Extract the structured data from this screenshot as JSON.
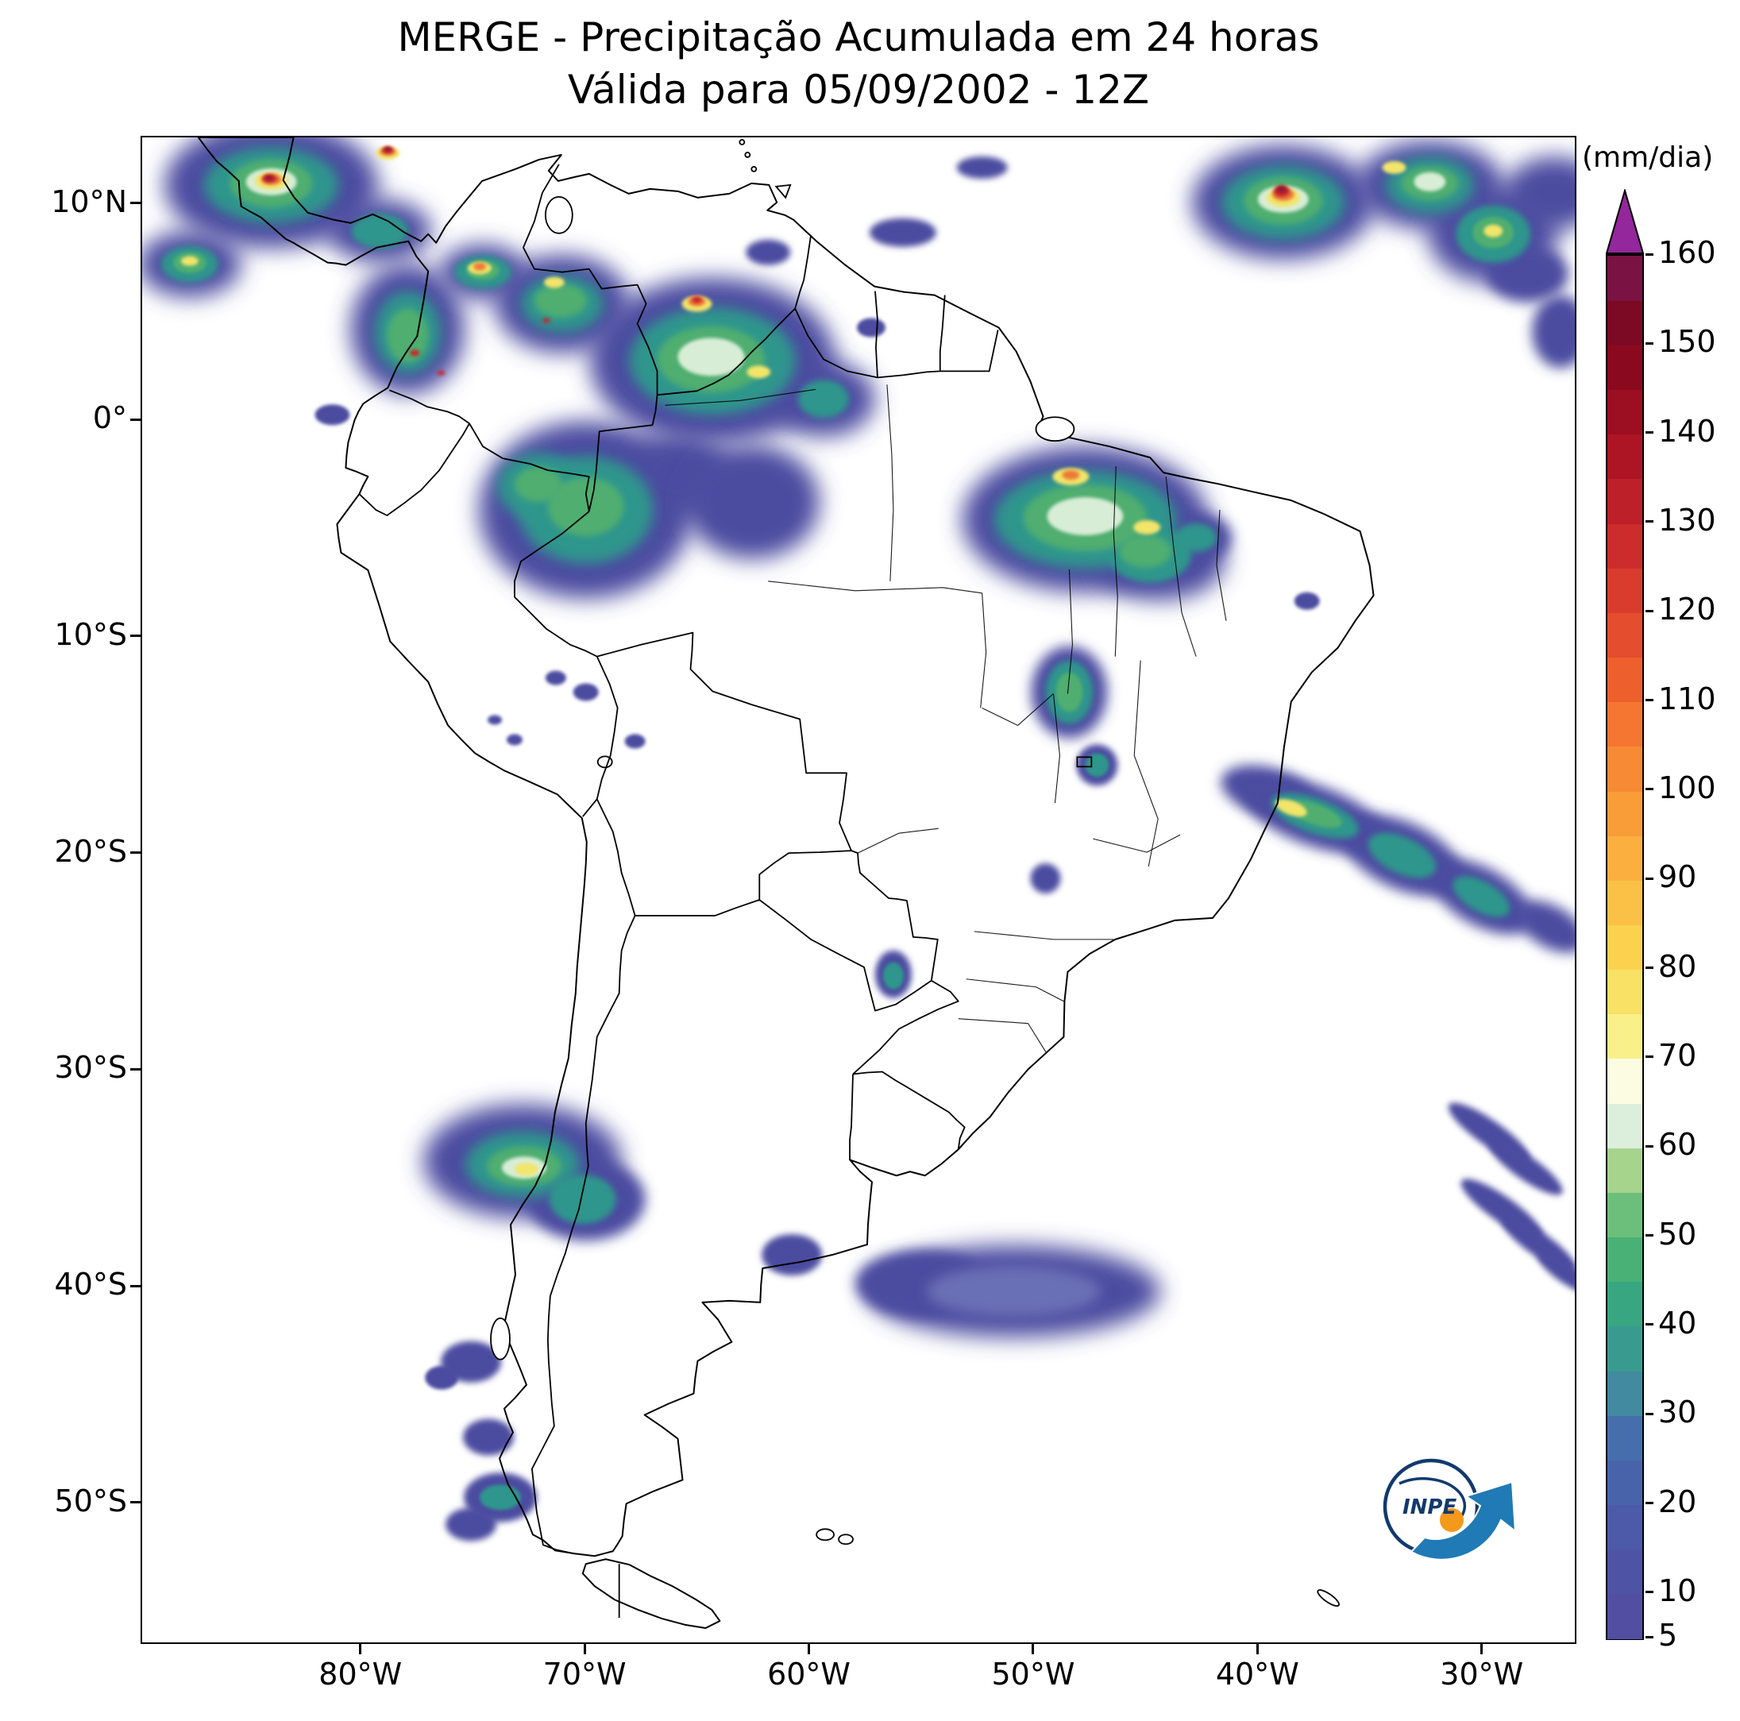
{
  "title": {
    "line1": "MERGE - Precipitação Acumulada em 24 horas",
    "line2": "Válida para 05/09/2002 - 12Z"
  },
  "axes": {
    "lat_ticks": [
      {
        "label": "10°N",
        "lat": 10
      },
      {
        "label": "0°",
        "lat": 0
      },
      {
        "label": "10°S",
        "lat": -10
      },
      {
        "label": "20°S",
        "lat": -20
      },
      {
        "label": "30°S",
        "lat": -30
      },
      {
        "label": "40°S",
        "lat": -40
      },
      {
        "label": "50°S",
        "lat": -50
      }
    ],
    "lon_ticks": [
      {
        "label": "80°W",
        "lon": 80
      },
      {
        "label": "70°W",
        "lon": 70
      },
      {
        "label": "60°W",
        "lon": 60
      },
      {
        "label": "50°W",
        "lon": 50
      },
      {
        "label": "40°W",
        "lon": 40
      },
      {
        "label": "30°W",
        "lon": 30
      }
    ]
  },
  "colorbar": {
    "unit": "(mm/dia)",
    "min": 5,
    "max": 160,
    "tick_values": [
      5,
      10,
      20,
      30,
      40,
      50,
      60,
      70,
      80,
      90,
      100,
      110,
      120,
      130,
      140,
      150,
      160
    ],
    "segment_step": 5,
    "segment_colors_bottom_to_top": [
      "#524fa3",
      "#4f53a6",
      "#4c5aa9",
      "#4963ab",
      "#466ead",
      "#418a9f",
      "#399b90",
      "#38a681",
      "#4ab176",
      "#6cbf7a",
      "#a6d48d",
      "#dcefdc",
      "#fcfce3",
      "#faf089",
      "#f9e165",
      "#fad24e",
      "#fbc147",
      "#fbaf3f",
      "#f99d39",
      "#f78a34",
      "#f47630",
      "#ee5f2e",
      "#e44d2d",
      "#d93b2c",
      "#cc2c2b",
      "#bd2028",
      "#ad1525",
      "#9c0e22",
      "#8b091f",
      "#7c0a24",
      "#7a1244"
    ],
    "over_color": "#93279b"
  },
  "logo": {
    "text": "INPE"
  },
  "palette": {
    "b": "#4c4ba0",
    "lb": "#6b6fb5",
    "t": "#2f968c",
    "g": "#4fae6f",
    "p": "#d8edd5",
    "y": "#f2e56a",
    "o": "#ec7a36",
    "r": "#c5252d",
    "d": "#8c1430"
  },
  "precipitation_blobs": [
    [
      163,
      60,
      135,
      80,
      "b",
      "lg",
      0
    ],
    [
      60,
      160,
      65,
      42,
      "b",
      "lg",
      0
    ],
    [
      300,
      118,
      65,
      40,
      "b",
      "lg",
      0
    ],
    [
      335,
      242,
      72,
      82,
      "b",
      "lg",
      0
    ],
    [
      430,
      170,
      55,
      35,
      "b",
      "lg",
      0
    ],
    [
      530,
      210,
      85,
      62,
      "b",
      "lg",
      0
    ],
    [
      790,
      145,
      28,
      16,
      "b",
      "sm",
      0
    ],
    [
      920,
      240,
      18,
      12,
      "b",
      "xs",
      0
    ],
    [
      720,
      282,
      155,
      105,
      "b",
      "lg",
      0
    ],
    [
      860,
      330,
      65,
      48,
      "b",
      "lg",
      0
    ],
    [
      560,
      470,
      135,
      112,
      "b",
      "lg",
      0
    ],
    [
      680,
      425,
      65,
      52,
      "b",
      "lg",
      0
    ],
    [
      770,
      460,
      85,
      72,
      "b",
      "lg",
      0
    ],
    [
      1060,
      38,
      32,
      14,
      "b",
      "sm",
      0
    ],
    [
      960,
      120,
      42,
      18,
      "b",
      "sm",
      0
    ],
    [
      1190,
      482,
      155,
      92,
      "b",
      "lg",
      0
    ],
    [
      1285,
      532,
      82,
      52,
      "b",
      "lg",
      0
    ],
    [
      1330,
      505,
      45,
      32,
      "b",
      "md",
      0
    ],
    [
      1470,
      585,
      16,
      11,
      "b",
      "xs",
      0
    ],
    [
      1170,
      700,
      48,
      58,
      "b",
      "md",
      0
    ],
    [
      1205,
      792,
      26,
      26,
      "b",
      "sm",
      0
    ],
    [
      1140,
      935,
      19,
      19,
      "b",
      "sm",
      0
    ],
    [
      948,
      1056,
      23,
      30,
      "b",
      "sm",
      0
    ],
    [
      1420,
      825,
      60,
      30,
      "b",
      "md",
      15
    ],
    [
      1480,
      856,
      95,
      38,
      "b",
      "md",
      20
    ],
    [
      1590,
      906,
      82,
      42,
      "b",
      "md",
      25
    ],
    [
      1690,
      958,
      72,
      36,
      "b",
      "md",
      30
    ],
    [
      1778,
      996,
      48,
      26,
      "b",
      "md",
      30
    ],
    [
      480,
      1292,
      125,
      72,
      "b",
      "lg",
      0
    ],
    [
      560,
      1340,
      75,
      52,
      "b",
      "md",
      0
    ],
    [
      820,
      1410,
      38,
      26,
      "b",
      "sm",
      0
    ],
    [
      1100,
      1456,
      185,
      58,
      "b",
      "lg",
      0
    ],
    [
      985,
      1446,
      85,
      42,
      "b",
      "md",
      0
    ],
    [
      415,
      1545,
      38,
      26,
      "b",
      "sm",
      0
    ],
    [
      437,
      1640,
      32,
      23,
      "b",
      "sm",
      0
    ],
    [
      452,
      1716,
      46,
      31,
      "b",
      "sm",
      0
    ],
    [
      415,
      1750,
      32,
      21,
      "b",
      "sm",
      0
    ],
    [
      378,
      1565,
      21,
      15,
      "b",
      "xs",
      0
    ],
    [
      1440,
      82,
      115,
      72,
      "b",
      "lg",
      0
    ],
    [
      1625,
      60,
      92,
      56,
      "b",
      "lg",
      0
    ],
    [
      1705,
      122,
      82,
      62,
      "b",
      "lg",
      0
    ],
    [
      1782,
      70,
      62,
      46,
      "b",
      "lg",
      0
    ],
    [
      1748,
      172,
      52,
      36,
      "b",
      "md",
      0
    ],
    [
      1790,
      245,
      36,
      46,
      "b",
      "md",
      0
    ],
    [
      1700,
      1256,
      62,
      16,
      "b",
      "sm",
      35
    ],
    [
      1746,
      1300,
      56,
      15,
      "b",
      "sm",
      35
    ],
    [
      1716,
      1352,
      62,
      16,
      "b",
      "sm",
      35
    ],
    [
      1762,
      1396,
      56,
      15,
      "b",
      "sm",
      35
    ],
    [
      1796,
      1432,
      42,
      13,
      "b",
      "sm",
      35
    ],
    [
      240,
      350,
      22,
      13,
      "b",
      "xs",
      0
    ],
    [
      560,
      700,
      16,
      11,
      "b",
      "xs",
      0
    ],
    [
      522,
      682,
      13,
      9,
      "b",
      "xs",
      0
    ],
    [
      622,
      762,
      13,
      9,
      "b",
      "xs",
      0
    ],
    [
      470,
      760,
      10,
      7,
      "b",
      "xs",
      0
    ],
    [
      445,
      735,
      9,
      6,
      "b",
      "xs",
      0
    ],
    [
      1100,
      1456,
      110,
      32,
      "lb",
      "md",
      0
    ],
    [
      163,
      60,
      85,
      48,
      "t",
      "md",
      0
    ],
    [
      335,
      246,
      42,
      52,
      "t",
      "md",
      0
    ],
    [
      530,
      210,
      52,
      36,
      "t",
      "md",
      0
    ],
    [
      720,
      282,
      105,
      68,
      "t",
      "md",
      0
    ],
    [
      860,
      330,
      32,
      24,
      "t",
      "sm",
      0
    ],
    [
      560,
      470,
      85,
      68,
      "t",
      "md",
      0
    ],
    [
      500,
      440,
      52,
      42,
      "t",
      "md",
      0
    ],
    [
      1190,
      482,
      115,
      62,
      "t",
      "md",
      0
    ],
    [
      1272,
      526,
      52,
      36,
      "t",
      "sm",
      0
    ],
    [
      1330,
      505,
      26,
      18,
      "t",
      "sm",
      0
    ],
    [
      1170,
      700,
      30,
      40,
      "t",
      "sm",
      0
    ],
    [
      480,
      1296,
      72,
      42,
      "t",
      "md",
      0
    ],
    [
      556,
      1340,
      42,
      31,
      "t",
      "sm",
      0
    ],
    [
      1480,
      856,
      58,
      22,
      "t",
      "sm",
      20
    ],
    [
      1590,
      906,
      46,
      23,
      "t",
      "sm",
      25
    ],
    [
      1690,
      958,
      40,
      19,
      "t",
      "sm",
      30
    ],
    [
      1440,
      82,
      78,
      47,
      "t",
      "md",
      0
    ],
    [
      1625,
      60,
      56,
      36,
      "t",
      "md",
      0
    ],
    [
      1705,
      122,
      47,
      36,
      "t",
      "sm",
      0
    ],
    [
      452,
      1716,
      26,
      16,
      "t",
      "xs",
      0
    ],
    [
      1205,
      792,
      15,
      15,
      "t",
      "xs",
      0
    ],
    [
      948,
      1058,
      13,
      17,
      "t",
      "xs",
      0
    ],
    [
      60,
      160,
      36,
      23,
      "t",
      "sm",
      0
    ],
    [
      430,
      170,
      36,
      21,
      "t",
      "sm",
      0
    ],
    [
      300,
      118,
      36,
      22,
      "t",
      "sm",
      0
    ],
    [
      163,
      58,
      52,
      30,
      "g",
      "sm",
      0
    ],
    [
      335,
      250,
      26,
      34,
      "g",
      "sm",
      0
    ],
    [
      528,
      206,
      33,
      21,
      "g",
      "sm",
      0
    ],
    [
      718,
      280,
      68,
      42,
      "g",
      "sm",
      0
    ],
    [
      1190,
      480,
      78,
      42,
      "g",
      "sm",
      0
    ],
    [
      1266,
      522,
      33,
      21,
      "g",
      "sm",
      0
    ],
    [
      560,
      466,
      48,
      37,
      "g",
      "sm",
      0
    ],
    [
      500,
      438,
      30,
      22,
      "g",
      "sm",
      0
    ],
    [
      1170,
      700,
      17,
      25,
      "g",
      "xs",
      0
    ],
    [
      482,
      1298,
      47,
      25,
      "g",
      "sm",
      0
    ],
    [
      1480,
      854,
      36,
      13,
      "g",
      "xs",
      20
    ],
    [
      1440,
      80,
      50,
      30,
      "g",
      "sm",
      0
    ],
    [
      1625,
      58,
      36,
      21,
      "g",
      "sm",
      0
    ],
    [
      60,
      158,
      21,
      13,
      "g",
      "xs",
      0
    ],
    [
      430,
      168,
      21,
      12,
      "g",
      "xs",
      0
    ],
    [
      1705,
      120,
      26,
      20,
      "g",
      "xs",
      0
    ],
    [
      163,
      56,
      32,
      17,
      "p",
      "xs",
      0
    ],
    [
      718,
      277,
      42,
      24,
      "p",
      "xs",
      0
    ],
    [
      1190,
      478,
      48,
      24,
      "p",
      "xs",
      0
    ],
    [
      1440,
      78,
      32,
      17,
      "p",
      "xs",
      0
    ],
    [
      482,
      1300,
      28,
      14,
      "p",
      "xs",
      0
    ],
    [
      1625,
      56,
      20,
      12,
      "p",
      "xs",
      0
    ],
    [
      163,
      55,
      21,
      11,
      "y",
      "xs",
      0
    ],
    [
      310,
      20,
      15,
      8,
      "y",
      "xs",
      0
    ],
    [
      426,
      165,
      15,
      8,
      "y",
      "xs",
      0
    ],
    [
      520,
      183,
      13,
      7,
      "y",
      "xs",
      0
    ],
    [
      700,
      210,
      19,
      10,
      "y",
      "xs",
      0
    ],
    [
      778,
      296,
      15,
      8,
      "y",
      "xs",
      0
    ],
    [
      1172,
      428,
      23,
      11,
      "y",
      "xs",
      0
    ],
    [
      1268,
      492,
      17,
      9,
      "y",
      "xs",
      0
    ],
    [
      1450,
      846,
      21,
      9,
      "y",
      "xs",
      20
    ],
    [
      1440,
      76,
      21,
      12,
      "y",
      "xs",
      0
    ],
    [
      1580,
      38,
      15,
      8,
      "y",
      "xs",
      0
    ],
    [
      485,
      1302,
      15,
      8,
      "y",
      "xs",
      0
    ],
    [
      60,
      156,
      11,
      6,
      "y",
      "xs",
      0
    ],
    [
      1705,
      118,
      12,
      8,
      "y",
      "xs",
      0
    ],
    [
      163,
      53,
      13,
      7,
      "o",
      "xs",
      0
    ],
    [
      310,
      18,
      10,
      5,
      "o",
      "xs",
      0
    ],
    [
      1440,
      72,
      14,
      8,
      "o",
      "xs",
      0
    ],
    [
      700,
      207,
      11,
      6,
      "o",
      "xs",
      0
    ],
    [
      1172,
      426,
      11,
      6,
      "o",
      "xs",
      0
    ],
    [
      426,
      163,
      8,
      5,
      "o",
      "xs",
      0
    ],
    [
      161,
      52,
      9,
      5,
      "r",
      "xs",
      0
    ],
    [
      310,
      16,
      7,
      4,
      "r",
      "xs",
      0
    ],
    [
      1438,
      68,
      10,
      7,
      "r",
      "xs",
      0
    ],
    [
      344,
      272,
      6,
      4,
      "r",
      "xs",
      0
    ],
    [
      377,
      297,
      5,
      3,
      "r",
      "xs",
      0
    ],
    [
      510,
      231,
      5,
      3,
      "r",
      "xs",
      0
    ],
    [
      700,
      205,
      6,
      4,
      "r",
      "xs",
      0
    ],
    [
      1438,
      65,
      6,
      4,
      "d",
      "xs",
      0
    ],
    [
      160,
      51,
      5,
      3,
      "d",
      "xs",
      0
    ],
    [
      310,
      15,
      4,
      3,
      "d",
      "xs",
      0
    ]
  ]
}
